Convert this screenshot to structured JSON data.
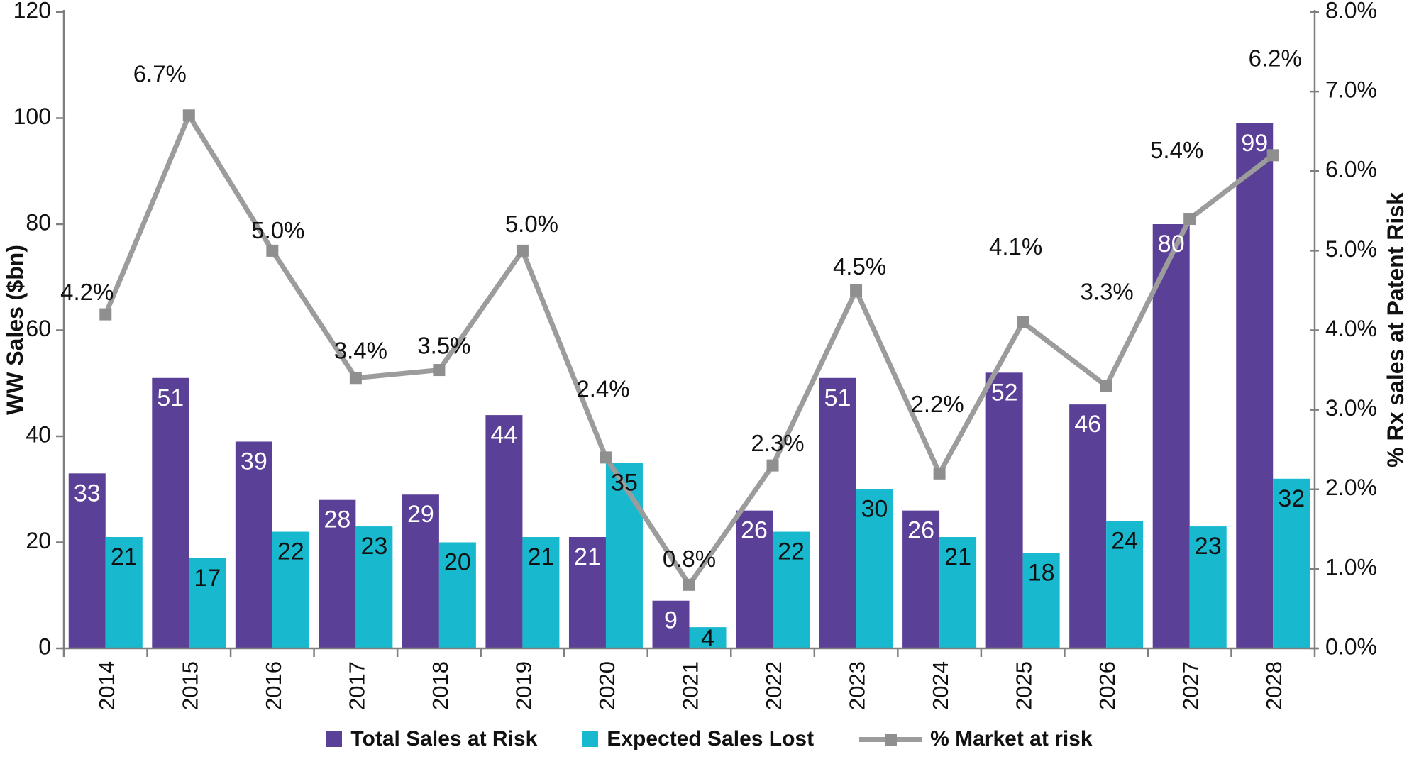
{
  "chart_data": {
    "type": "bar",
    "subtype": "combo-bar-line",
    "title": "",
    "categories": [
      "2014",
      "2015",
      "2016",
      "2017",
      "2018",
      "2019",
      "2020",
      "2021",
      "2022",
      "2023",
      "2024",
      "2025",
      "2026",
      "2027",
      "2028"
    ],
    "series": [
      {
        "name": "Total Sales at Risk",
        "type": "bar",
        "axis": "left",
        "color": "#5B4097",
        "label_color": "#ffffff",
        "values": [
          33,
          51,
          39,
          28,
          29,
          44,
          21,
          9,
          26,
          51,
          26,
          52,
          46,
          80,
          99
        ]
      },
      {
        "name": "Expected Sales Lost",
        "type": "bar",
        "axis": "left",
        "color": "#18B8CE",
        "label_color": "#111111",
        "values": [
          21,
          17,
          22,
          23,
          20,
          21,
          35,
          4,
          22,
          30,
          21,
          18,
          24,
          23,
          32
        ]
      },
      {
        "name": "% Market at risk",
        "type": "line",
        "axis": "right",
        "color": "#9C9C9C",
        "marker_color": "#8F8F8F",
        "label_color": "#111111",
        "values": [
          4.2,
          6.7,
          5.0,
          3.4,
          3.5,
          5.0,
          2.4,
          0.8,
          2.3,
          4.5,
          2.2,
          4.1,
          3.3,
          5.4,
          6.2
        ]
      }
    ],
    "point_labels_line": [
      "4.2%",
      "6.7%",
      "5.0%",
      "3.4%",
      "3.5%",
      "5.0%",
      "2.4%",
      "0.8%",
      "2.3%",
      "4.5%",
      "2.2%",
      "4.1%",
      "3.3%",
      "5.4%",
      "6.2%"
    ],
    "left_axis": {
      "label": "WW Sales ($bn)",
      "min": 0,
      "max": 120,
      "tick_step": 20,
      "tick_labels": [
        "0",
        "20",
        "40",
        "60",
        "80",
        "100",
        "120"
      ]
    },
    "right_axis": {
      "label": "% Rx sales at Patent Risk",
      "min": 0,
      "max": 8,
      "tick_step": 1,
      "tick_labels": [
        "0.0%",
        "1.0%",
        "2.0%",
        "3.0%",
        "4.0%",
        "5.0%",
        "6.0%",
        "7.0%",
        "8.0%"
      ]
    },
    "legend_position": "bottom",
    "grid": false,
    "axis_color": "#7F7F7F",
    "text_color": "#111111"
  }
}
